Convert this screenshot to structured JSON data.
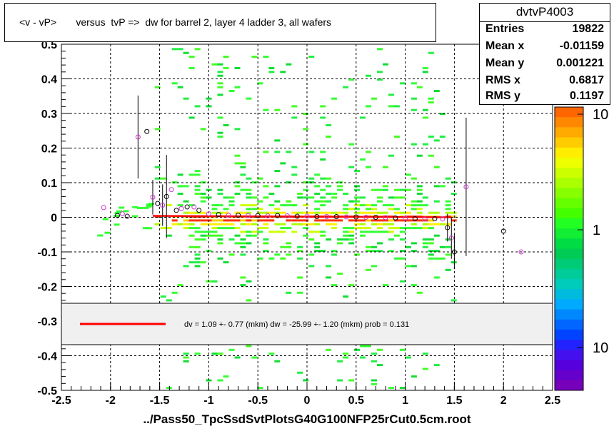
{
  "title": "<v - vP>       versus  tvP =>  dw for barrel 2, layer 4 ladder 3, all wafers",
  "stats": {
    "name": "dvtvP4003",
    "rows": [
      {
        "label": "Entries",
        "value": "19822"
      },
      {
        "label": "Mean x",
        "value": "-0.01159"
      },
      {
        "label": "Mean y",
        "value": "0.001221"
      },
      {
        "label": "RMS x",
        "value": "0.6817"
      },
      {
        "label": "RMS y",
        "value": "0.1197"
      }
    ]
  },
  "fit_legend": {
    "text": "dv =    1.09 +-  0.77 (mkm) dw =  -25.99 +-  1.20 (mkm) prob = 0.131",
    "line_color": "#ff0000"
  },
  "colors": {
    "fit_line": "#ff0000",
    "profile_marker": "#000000",
    "profile_marker_alt": "#cc33cc"
  },
  "chart_data": {
    "type": "heatmap",
    "xlabel": "../Pass50_TpcSsdSvtPlotsG40G100NFP25rCut0.5cm.root",
    "ylabel": "",
    "xlim": [
      -2.5,
      2.5
    ],
    "ylim": [
      -0.5,
      0.5
    ],
    "x_ticks": [
      "-2.5",
      "-2",
      "-1.5",
      "-1",
      "-0.5",
      "0",
      "0.5",
      "1",
      "1.5",
      "2",
      "2.5"
    ],
    "y_ticks": [
      "-0.5",
      "-0.4",
      "-0.3",
      "-0.2",
      "-0.1",
      "0",
      "0.1",
      "0.2",
      "0.3",
      "0.4",
      "0.5"
    ],
    "grid": true,
    "log_z": true,
    "z_tick_labels": [
      "10",
      "1",
      "10"
    ],
    "fit_line": {
      "x": [
        -1.57,
        1.47
      ],
      "y": [
        0.004,
        0.0
      ]
    },
    "profile_points": [
      {
        "x": -2.07,
        "y": 0.028
      },
      {
        "x": -1.93,
        "y": 0.005
      },
      {
        "x": -1.88,
        "y": 0.01
      },
      {
        "x": -1.83,
        "y": 0.003
      },
      {
        "x": -1.72,
        "y": 0.232,
        "err": 0.12
      },
      {
        "x": -1.63,
        "y": 0.248
      },
      {
        "x": -1.57,
        "y": 0.058,
        "err": 0.05
      },
      {
        "x": -1.52,
        "y": 0.04
      },
      {
        "x": -1.47,
        "y": 0.035,
        "err": 0.06
      },
      {
        "x": -1.43,
        "y": 0.06,
        "err": 0.12
      },
      {
        "x": -1.38,
        "y": 0.08
      },
      {
        "x": -1.33,
        "y": 0.02
      },
      {
        "x": -1.28,
        "y": 0.025
      },
      {
        "x": -1.22,
        "y": 0.03
      },
      {
        "x": -1.15,
        "y": 0.03
      },
      {
        "x": -1.1,
        "y": 0.02
      },
      {
        "x": -1.0,
        "y": 0.01
      },
      {
        "x": -0.9,
        "y": 0.008
      },
      {
        "x": -0.8,
        "y": 0.006
      },
      {
        "x": -0.7,
        "y": 0.006
      },
      {
        "x": -0.6,
        "y": 0.005
      },
      {
        "x": -0.5,
        "y": 0.005
      },
      {
        "x": -0.4,
        "y": 0.004
      },
      {
        "x": -0.3,
        "y": 0.005
      },
      {
        "x": -0.2,
        "y": 0.004
      },
      {
        "x": -0.1,
        "y": 0.003
      },
      {
        "x": 0.0,
        "y": 0.003
      },
      {
        "x": 0.1,
        "y": 0.002
      },
      {
        "x": 0.2,
        "y": 0.002
      },
      {
        "x": 0.3,
        "y": 0.002
      },
      {
        "x": 0.4,
        "y": 0.001
      },
      {
        "x": 0.5,
        "y": 0.001
      },
      {
        "x": 0.6,
        "y": 0.0
      },
      {
        "x": 0.7,
        "y": 0.0
      },
      {
        "x": 0.8,
        "y": -0.001
      },
      {
        "x": 0.9,
        "y": -0.002
      },
      {
        "x": 1.0,
        "y": -0.003
      },
      {
        "x": 1.1,
        "y": -0.004
      },
      {
        "x": 1.2,
        "y": -0.005
      },
      {
        "x": 1.3,
        "y": -0.004
      },
      {
        "x": 1.38,
        "y": -0.005
      },
      {
        "x": 1.43,
        "y": -0.03,
        "err": 0.04
      },
      {
        "x": 1.47,
        "y": -0.06,
        "err": 0.06
      },
      {
        "x": 1.5,
        "y": -0.1,
        "err": 0.05
      },
      {
        "x": 1.62,
        "y": 0.088,
        "err": 0.2
      },
      {
        "x": 2.0,
        "y": -0.04
      },
      {
        "x": 2.18,
        "y": -0.1
      }
    ]
  }
}
